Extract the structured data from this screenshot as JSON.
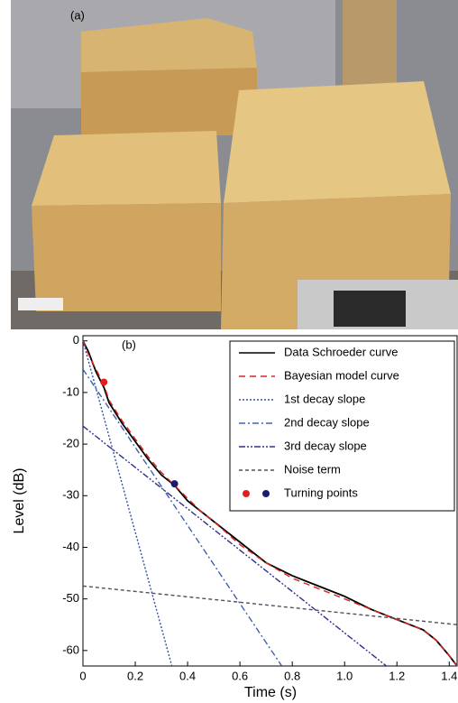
{
  "photo_label": "(a)",
  "chart_data": {
    "type": "line",
    "panel_label": "(b)",
    "x_label": "Time (s)",
    "y_label": "Level (dB)",
    "xlim": [
      0,
      1.43
    ],
    "ylim": [
      -63,
      1
    ],
    "xticks": [
      0,
      0.2,
      0.4,
      0.6,
      0.8,
      {
        "value": 1,
        "label": "1.0"
      },
      1.2,
      1.4
    ],
    "yticks": [
      0,
      -10,
      -20,
      -30,
      -40,
      -50,
      -60
    ],
    "legend": "upper right",
    "series": [
      {
        "name": "Data Schroeder curve",
        "color": "#000000",
        "style": "solid",
        "x": [
          0,
          0.02,
          0.05,
          0.08,
          0.1,
          0.15,
          0.2,
          0.25,
          0.3,
          0.35,
          0.4,
          0.45,
          0.5,
          0.6,
          0.7,
          0.8,
          0.9,
          1.0,
          1.1,
          1.2,
          1.3,
          1.35,
          1.4,
          1.43
        ],
        "values": [
          0,
          -2,
          -6,
          -9,
          -12,
          -16,
          -19.5,
          -23,
          -26,
          -28,
          -31,
          -33,
          -35,
          -39,
          -43,
          -45.5,
          -47.5,
          -49.5,
          -52,
          -54,
          -56,
          -58,
          -61,
          -63
        ]
      },
      {
        "name": "Bayesian model curve",
        "color": "#e02020",
        "style": "dashed",
        "x": [
          0,
          0.02,
          0.05,
          0.08,
          0.1,
          0.15,
          0.2,
          0.25,
          0.3,
          0.35,
          0.4,
          0.45,
          0.5,
          0.6,
          0.7,
          0.8,
          0.9,
          1.0,
          1.1,
          1.2,
          1.3,
          1.35,
          1.4,
          1.43
        ],
        "values": [
          0,
          -2.5,
          -5.5,
          -8.5,
          -11.5,
          -15.5,
          -19,
          -22.5,
          -25.5,
          -28,
          -30.5,
          -33,
          -35,
          -39.5,
          -43,
          -46,
          -48,
          -50,
          -52,
          -54,
          -56,
          -58,
          -61,
          -63
        ]
      },
      {
        "name": "1st decay slope",
        "color": "#3050a0",
        "style": "dotted",
        "x": [
          0,
          0.34
        ],
        "values": [
          0,
          -63
        ]
      },
      {
        "name": "2nd decay slope",
        "color": "#4060b0",
        "style": "dashdot",
        "x": [
          0,
          0.76
        ],
        "values": [
          -5.5,
          -63
        ]
      },
      {
        "name": "3rd decay slope",
        "color": "#303090",
        "style": "dashdotdot",
        "x": [
          0,
          1.16
        ],
        "values": [
          -16.5,
          -63
        ]
      },
      {
        "name": "Noise term",
        "color": "#505060",
        "style": "thindash",
        "x": [
          0,
          1.43
        ],
        "values": [
          -47.5,
          -55
        ]
      },
      {
        "name": "Turning points",
        "type": "scatter",
        "colors": [
          "#e02020",
          "#1a1a6e"
        ],
        "x": [
          0.08,
          0.35
        ],
        "values": [
          -8,
          -27.7
        ]
      }
    ]
  }
}
